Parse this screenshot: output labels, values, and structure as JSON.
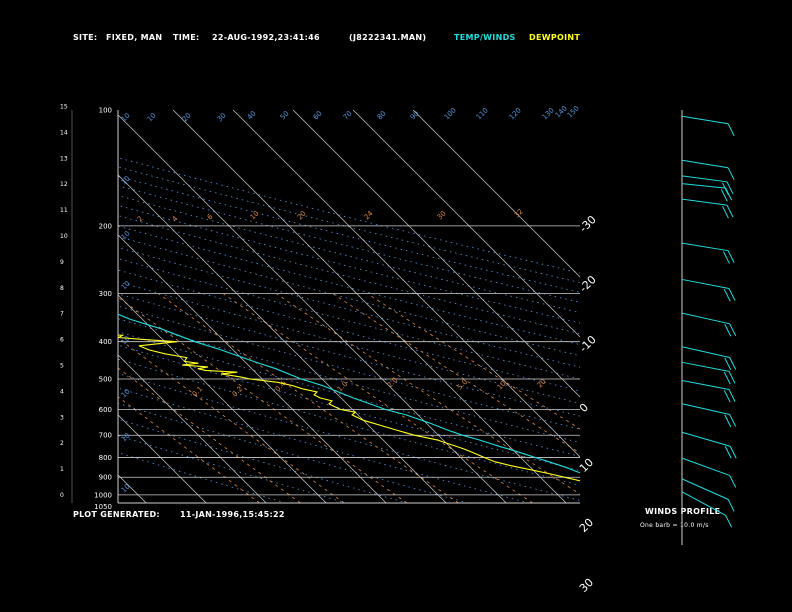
{
  "header": {
    "site_label": "SITE:",
    "site_value": "FIXED, MAN",
    "time_label": "TIME:",
    "time_value": "22-AUG-1992,23:41:46",
    "file": "(J8222341.MAN)",
    "legend_temp": "TEMP/WINDS",
    "legend_dew": "DEWPOINT"
  },
  "footer": {
    "generated_label": "PLOT GENERATED:",
    "generated_value": "11-JAN-1996,15:45:22",
    "winds_title": "WINDS PROFILE",
    "winds_note": "One barb = 10.0 m/s"
  },
  "colors": {
    "temp": "#22dddd",
    "dew": "#ffff22",
    "grid": "#cfcfcf",
    "mixing": "#dd8844",
    "adiabat": "#5599dd",
    "text": "#ffffff"
  },
  "chart_data": {
    "type": "line",
    "pressure_ticks": [
      "100",
      "200",
      "300",
      "400",
      "500",
      "600",
      "700",
      "800",
      "900",
      "1000",
      "1050"
    ],
    "height_ticks": [
      "0",
      "1",
      "2",
      "3",
      "4",
      "5",
      "6",
      "7",
      "8",
      "9",
      "10",
      "11",
      "12",
      "13",
      "14",
      "15"
    ],
    "temp_ticks_top": [
      "-110",
      "-100",
      "-90",
      "-80",
      "-70",
      "-60",
      "-50",
      "-40"
    ],
    "temp_ticks_right": [
      "-30",
      "-20",
      "-10",
      "0",
      "10",
      "20",
      "30"
    ],
    "adiabat_labels": [
      "10",
      "10",
      "10",
      "10",
      "10",
      "10",
      "10",
      "10",
      "10",
      "20",
      "30",
      "40",
      "50",
      "60",
      "70",
      "80",
      "90",
      "100",
      "110",
      "120",
      "130",
      "140",
      "150"
    ],
    "mixing_labels": [
      "0.1",
      "0.2",
      "0.4",
      "1.0",
      "2.0",
      "5.0",
      "10",
      "20",
      "2",
      "4",
      "6",
      "10",
      "20",
      "24",
      "30",
      "32"
    ],
    "series": [
      {
        "name": "TEMP/WINDS",
        "pressure": [
          1000,
          980,
          950,
          920,
          900,
          870,
          850,
          820,
          800,
          780,
          750,
          720,
          700,
          680,
          650,
          620,
          600,
          560,
          520,
          500,
          470,
          450,
          420,
          400,
          370,
          350,
          320,
          300,
          280,
          260,
          240,
          220,
          200,
          190,
          180,
          170,
          160,
          150,
          140,
          130,
          120,
          110,
          100
        ],
        "temp": [
          26,
          23,
          21,
          19.5,
          19,
          17,
          16,
          14,
          12.5,
          11,
          8.5,
          6,
          4,
          2.5,
          0.5,
          -2,
          -4.5,
          -8,
          -11,
          -13.5,
          -16,
          -18.5,
          -22,
          -25,
          -28.5,
          -32,
          -35.5,
          -39,
          -42.5,
          -46,
          -50,
          -54,
          -57,
          -58.5,
          -60,
          -61.5,
          -63,
          -66,
          -68,
          -71,
          -74,
          -77,
          -79
        ]
      },
      {
        "name": "DEWPOINT",
        "pressure": [
          1000,
          980,
          970,
          950,
          930,
          900,
          880,
          860,
          840,
          820,
          800,
          780,
          760,
          740,
          720,
          700,
          690,
          680,
          670,
          660,
          650,
          640,
          630,
          620,
          610,
          600,
          590,
          580,
          570,
          560,
          550,
          540,
          530,
          520,
          510,
          500,
          495,
          490,
          485,
          480,
          475,
          470,
          465,
          460,
          455,
          450,
          440,
          430,
          420,
          410,
          400,
          395,
          390,
          385,
          380,
          375,
          370,
          365,
          360,
          355,
          350,
          345,
          340,
          330,
          320,
          310,
          300,
          290,
          280,
          270,
          260,
          250,
          240,
          230,
          220,
          210,
          200,
          190,
          180,
          170,
          160,
          150,
          140,
          130,
          120,
          110,
          100
        ],
        "dew": [
          24,
          23,
          22,
          19,
          17,
          14,
          12,
          9.5,
          7,
          5,
          4,
          3,
          2,
          0.5,
          -1,
          -4,
          -5,
          -6,
          -7,
          -8,
          -9,
          -10,
          -10.5,
          -11,
          -10,
          -12,
          -12.5,
          -13,
          -12,
          -13.5,
          -14,
          -13,
          -15,
          -16,
          -18,
          -22,
          -23,
          -24.5,
          -26,
          -23,
          -28,
          -29,
          -27,
          -31,
          -28,
          -30,
          -29,
          -32,
          -34,
          -35,
          -28,
          -33,
          -37,
          -36,
          -41,
          -38,
          -42,
          -39,
          -44,
          -40,
          -44,
          -43,
          -47,
          -48,
          -50,
          -51,
          -54,
          -56,
          -59,
          -62,
          -66,
          -70,
          -73,
          -75,
          -76,
          -78,
          -80,
          -83,
          -86,
          -88,
          -91,
          -93,
          -96,
          -98,
          -100,
          -101,
          -102
        ]
      }
    ],
    "wind_barbs": [
      {
        "z_km": 14.7,
        "dir": 250,
        "speed": 10
      },
      {
        "z_km": 13.0,
        "dir": 250,
        "speed": 10
      },
      {
        "z_km": 12.4,
        "dir": 245,
        "speed": 20
      },
      {
        "z_km": 12.1,
        "dir": 240,
        "speed": 20
      },
      {
        "z_km": 11.5,
        "dir": 245,
        "speed": 20
      },
      {
        "z_km": 9.8,
        "dir": 250,
        "speed": 20
      },
      {
        "z_km": 8.4,
        "dir": 255,
        "speed": 20
      },
      {
        "z_km": 7.1,
        "dir": 260,
        "speed": 20
      },
      {
        "z_km": 5.8,
        "dir": 260,
        "speed": 20
      },
      {
        "z_km": 5.2,
        "dir": 255,
        "speed": 20
      },
      {
        "z_km": 4.5,
        "dir": 255,
        "speed": 20
      },
      {
        "z_km": 3.6,
        "dir": 260,
        "speed": 20
      },
      {
        "z_km": 2.5,
        "dir": 270,
        "speed": 20
      },
      {
        "z_km": 1.5,
        "dir": 280,
        "speed": 10
      },
      {
        "z_km": 0.7,
        "dir": 290,
        "speed": 10
      },
      {
        "z_km": 0.2,
        "dir": 300,
        "speed": 10
      }
    ]
  }
}
